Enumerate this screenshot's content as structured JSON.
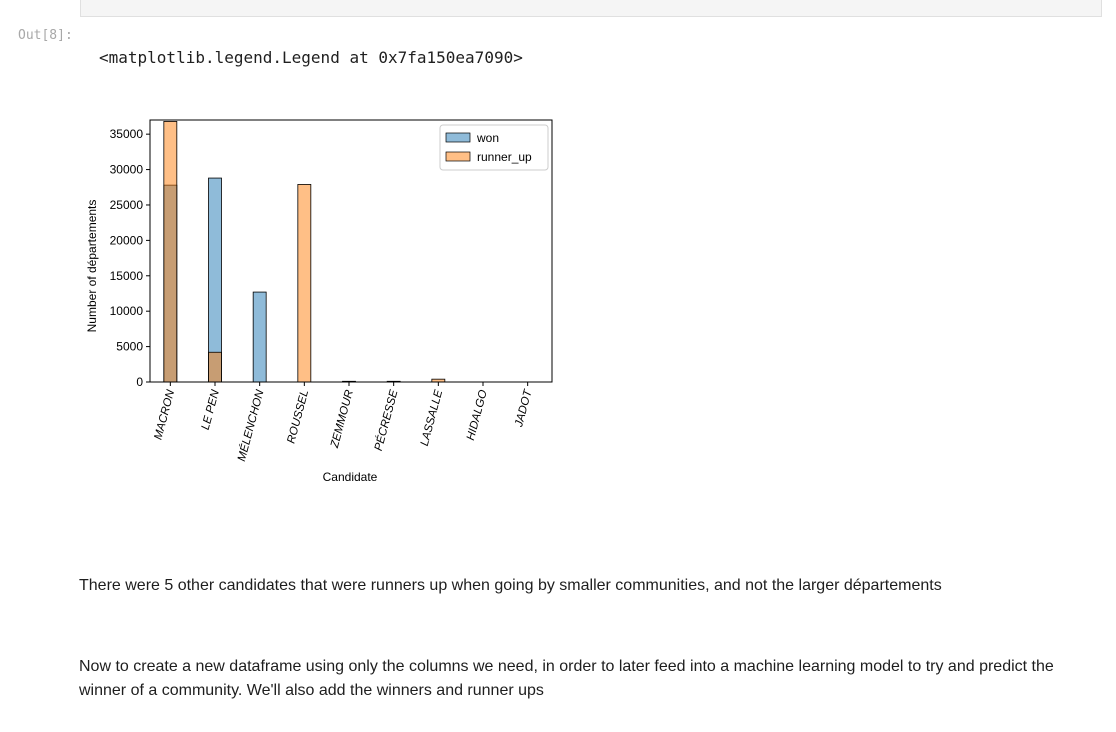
{
  "output_cell": {
    "prompt": "Out[8]:",
    "text": "<matplotlib.legend.Legend at 0x7fa150ea7090>"
  },
  "chart_data": {
    "type": "bar",
    "xlabel": "Candidate",
    "ylabel": "Number of départements",
    "ylim": [
      0,
      37000
    ],
    "yticks": [
      0,
      5000,
      10000,
      15000,
      20000,
      25000,
      30000,
      35000
    ],
    "categories": [
      "MACRON",
      "LE PEN",
      "MÉLENCHON",
      "ROUSSEL",
      "ZEMMOUR",
      "PÉCRESSE",
      "LASSALLE",
      "HIDALGO",
      "JADOT"
    ],
    "series": [
      {
        "name": "won",
        "color": "#1f77b4",
        "values": [
          27800,
          28800,
          12700,
          0,
          0,
          0,
          0,
          0,
          0
        ]
      },
      {
        "name": "runner_up",
        "color": "#ff7f0e",
        "values": [
          36800,
          4200,
          0,
          27900,
          100,
          100,
          400,
          0,
          0
        ]
      }
    ],
    "overlay": true,
    "grid": false,
    "legend": "top-right"
  },
  "markdown": {
    "paragraph_1": "There were 5 other candidates that were runners up when going by smaller communities, and not the larger départements",
    "paragraph_2": "Now to create a new dataframe using only the columns we need, in order to later feed into a machine learning model to try and predict the winner of a community. We'll also add the winners and runner ups"
  }
}
